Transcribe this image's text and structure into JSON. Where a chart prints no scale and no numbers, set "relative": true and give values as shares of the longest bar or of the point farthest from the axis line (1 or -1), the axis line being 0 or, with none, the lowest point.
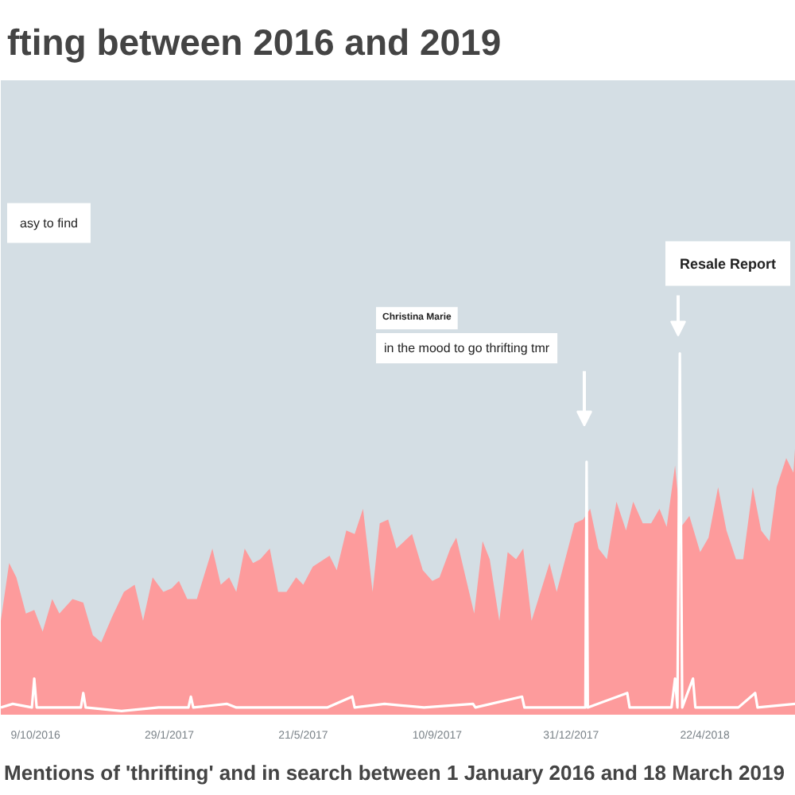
{
  "chart_data": {
    "type": "area",
    "title": "fting between 2016 and 2019",
    "relative": true,
    "xlim": [
      "2016-09-10",
      "2018-07-07"
    ],
    "xticks": [
      {
        "value": "2016-10-09",
        "label": "9/10/2016"
      },
      {
        "value": "2017-01-29",
        "label": "29/1/2017"
      },
      {
        "value": "2017-05-21",
        "label": "21/5/2017"
      },
      {
        "value": "2017-09-10",
        "label": "10/9/2017"
      },
      {
        "value": "2017-12-31",
        "label": "31/12/2017"
      },
      {
        "value": "2018-04-22",
        "label": "22/4/2018"
      }
    ],
    "series": [
      {
        "color": "#fd9b9c",
        "x": [
          "2016-09-10",
          "2016-09-17",
          "2016-09-23",
          "2016-10-01",
          "2016-10-08",
          "2016-10-15",
          "2016-10-23",
          "2016-10-29",
          "2016-11-09",
          "2016-11-18",
          "2016-11-26",
          "2016-12-03",
          "2016-12-12",
          "2016-12-22",
          "2016-12-31",
          "2017-01-07",
          "2017-01-15",
          "2017-01-24",
          "2017-01-31",
          "2017-02-06",
          "2017-02-13",
          "2017-02-21",
          "2017-03-06",
          "2017-03-13",
          "2017-03-20",
          "2017-03-26",
          "2017-04-02",
          "2017-04-09",
          "2017-04-15",
          "2017-04-23",
          "2017-04-30",
          "2017-05-07",
          "2017-05-15",
          "2017-05-21",
          "2017-05-29",
          "2017-06-12",
          "2017-06-18",
          "2017-06-26",
          "2017-07-03",
          "2017-07-10",
          "2017-07-18",
          "2017-07-24",
          "2017-07-31",
          "2017-08-07",
          "2017-08-20",
          "2017-08-29",
          "2017-09-06",
          "2017-09-12",
          "2017-09-21",
          "2017-09-26",
          "2017-10-11",
          "2017-10-18",
          "2017-10-24",
          "2017-11-01",
          "2017-11-08",
          "2017-11-15",
          "2017-11-21",
          "2017-11-28",
          "2017-12-13",
          "2017-12-19",
          "2018-01-03",
          "2018-01-10",
          "2018-01-16",
          "2018-01-23",
          "2018-01-30",
          "2018-02-07",
          "2018-02-15",
          "2018-02-21",
          "2018-03-01",
          "2018-03-08",
          "2018-03-15",
          "2018-03-21",
          "2018-03-28",
          "2018-04-02",
          "2018-04-09",
          "2018-04-18",
          "2018-04-25",
          "2018-05-03",
          "2018-05-10",
          "2018-05-18",
          "2018-05-24",
          "2018-06-01",
          "2018-06-08",
          "2018-06-15",
          "2018-06-21",
          "2018-06-29",
          "2018-07-05",
          "2018-07-07"
        ],
        "values": [
          0.26,
          0.42,
          0.38,
          0.28,
          0.29,
          0.23,
          0.32,
          0.28,
          0.32,
          0.31,
          0.22,
          0.2,
          0.27,
          0.34,
          0.36,
          0.26,
          0.38,
          0.34,
          0.35,
          0.37,
          0.32,
          0.32,
          0.46,
          0.36,
          0.38,
          0.34,
          0.46,
          0.42,
          0.43,
          0.46,
          0.34,
          0.34,
          0.38,
          0.36,
          0.41,
          0.44,
          0.4,
          0.51,
          0.5,
          0.57,
          0.34,
          0.53,
          0.54,
          0.46,
          0.5,
          0.4,
          0.37,
          0.38,
          0.46,
          0.49,
          0.28,
          0.48,
          0.43,
          0.26,
          0.45,
          0.43,
          0.46,
          0.26,
          0.42,
          0.34,
          0.53,
          0.54,
          0.57,
          0.46,
          0.43,
          0.59,
          0.51,
          0.59,
          0.53,
          0.53,
          0.57,
          0.52,
          0.69,
          0.52,
          0.55,
          0.45,
          0.49,
          0.63,
          0.51,
          0.43,
          0.43,
          0.63,
          0.51,
          0.48,
          0.63,
          0.71,
          0.67,
          0.77
        ]
      },
      {
        "type": "line",
        "color": "#ffffff",
        "x": [
          "2016-09-10",
          "2016-09-20",
          "2016-10-06",
          "2016-10-08",
          "2016-10-10",
          "2016-11-16",
          "2016-11-18",
          "2016-11-20",
          "2016-12-20",
          "2017-01-20",
          "2017-02-14",
          "2017-02-16",
          "2017-02-18",
          "2017-03-18",
          "2017-03-26",
          "2017-04-30",
          "2017-06-10",
          "2017-07-01",
          "2017-07-03",
          "2017-07-28",
          "2017-08-30",
          "2017-10-10",
          "2017-10-12",
          "2017-11-20",
          "2017-11-22",
          "2017-12-20",
          "2018-01-12",
          "2018-01-13",
          "2018-01-14",
          "2018-02-16",
          "2018-02-18",
          "2018-03-25",
          "2018-03-28",
          "2018-03-30",
          "2018-04-01",
          "2018-04-03",
          "2018-04-12",
          "2018-04-14",
          "2018-05-20",
          "2018-06-03",
          "2018-06-05",
          "2018-07-07"
        ],
        "values": [
          0.02,
          0.03,
          0.02,
          0.1,
          0.02,
          0.02,
          0.06,
          0.02,
          0.01,
          0.02,
          0.02,
          0.05,
          0.02,
          0.03,
          0.02,
          0.02,
          0.02,
          0.05,
          0.02,
          0.03,
          0.02,
          0.03,
          0.02,
          0.05,
          0.02,
          0.02,
          0.02,
          0.7,
          0.02,
          0.06,
          0.02,
          0.02,
          0.1,
          0.02,
          1.0,
          0.02,
          0.1,
          0.02,
          0.02,
          0.06,
          0.02,
          0.03
        ]
      }
    ],
    "annotations": [
      "Mentions of 'thrifting' and in search between 1 January 2016 and 18 March 2019",
      "asy to find",
      "Christina Marie",
      "in the mood to go thrifting tmr",
      "Resale Report"
    ]
  }
}
